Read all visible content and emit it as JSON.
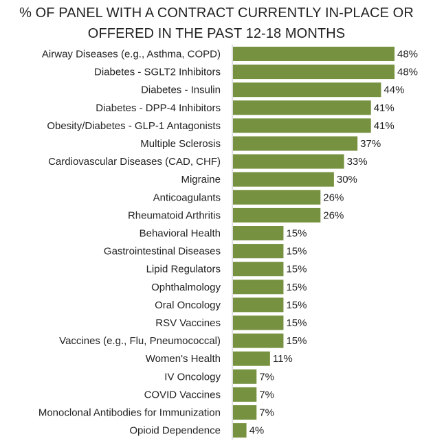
{
  "chart_data": {
    "type": "bar",
    "orientation": "horizontal",
    "title_lines": [
      "% OF PANEL WITH A CONTRACT CURRENTLY IN-PLACE OR",
      "OFFERED IN THE PAST 12-18 MONTHS"
    ],
    "categories": [
      "Airway Diseases (e.g., Asthma, COPD)",
      "Diabetes - SGLT2 Inhibitors",
      "Diabetes - Insulin",
      "Diabetes - DPP-4 Inhibitors",
      "Obesity/Diabetes - GLP-1 Antagonists",
      "Multiple Sclerosis",
      "Cardiovascular Diseases (CAD, CHF)",
      "Migraine",
      "Anticoagulants",
      "Rheumatoid Arthritis",
      "Behavioral Health",
      "Gastrointestinal Diseases",
      "Lipid Regulators",
      "Ophthalmology",
      "Oral Oncology",
      "RSV Vaccines",
      "Vaccines (e.g., Flu, Pneumococcal)",
      "Women's Health",
      "IV Oncology",
      "COVID Vaccines",
      "Monoclonal Antibodies for Immunization",
      "Opioid Dependence"
    ],
    "values": [
      48,
      48,
      44,
      41,
      41,
      37,
      33,
      30,
      26,
      26,
      15,
      15,
      15,
      15,
      15,
      15,
      15,
      11,
      7,
      7,
      7,
      4
    ],
    "value_labels": [
      "48%",
      "48%",
      "44%",
      "41%",
      "41%",
      "37%",
      "33%",
      "30%",
      "26%",
      "26%",
      "15%",
      "15%",
      "15%",
      "15%",
      "15%",
      "15%",
      "15%",
      "11%",
      "7%",
      "7%",
      "7%",
      "4%"
    ],
    "xlim": [
      0,
      48
    ],
    "grid": false,
    "bar_color": "#76913f",
    "axis_color": "#bfbfbf"
  }
}
